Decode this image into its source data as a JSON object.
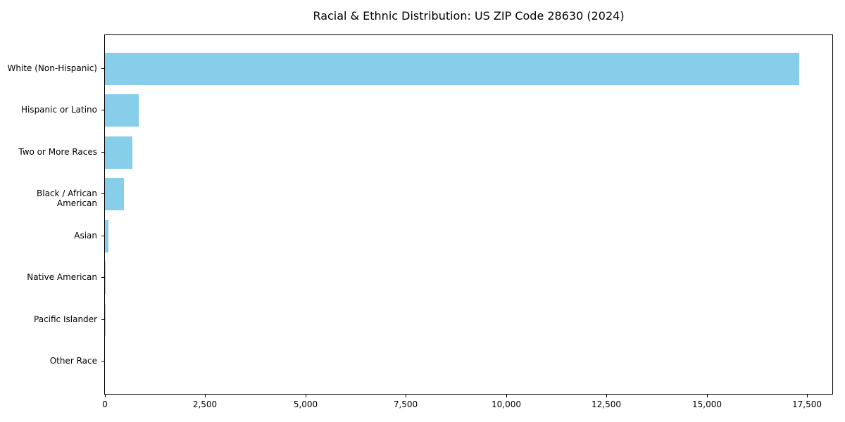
{
  "title": "Racial & Ethnic Distribution: US ZIP Code 28630 (2024)",
  "chart_data": {
    "type": "bar",
    "orientation": "horizontal",
    "title": "Racial & Ethnic Distribution: US ZIP Code 28630 (2024)",
    "xlabel": "",
    "ylabel": "",
    "categories": [
      "White (Non-Hispanic)",
      "Hispanic or Latino",
      "Two or More Races",
      "Black / African American",
      "Asian",
      "Native American",
      "Pacific Islander",
      "Other Race"
    ],
    "values": [
      17300,
      840,
      680,
      470,
      90,
      20,
      15,
      0
    ],
    "bar_color": "#87CEEB",
    "frame_color": "#000000",
    "xlim": [
      0,
      18130
    ],
    "x_ticks": [
      0,
      2500,
      5000,
      7500,
      10000,
      12500,
      15000,
      17500
    ],
    "x_tick_labels": [
      "0",
      "2,500",
      "5,000",
      "7,500",
      "10,000",
      "12,500",
      "15,000",
      "17,500"
    ],
    "grid": false,
    "legend": "none",
    "background": "#ffffff"
  }
}
